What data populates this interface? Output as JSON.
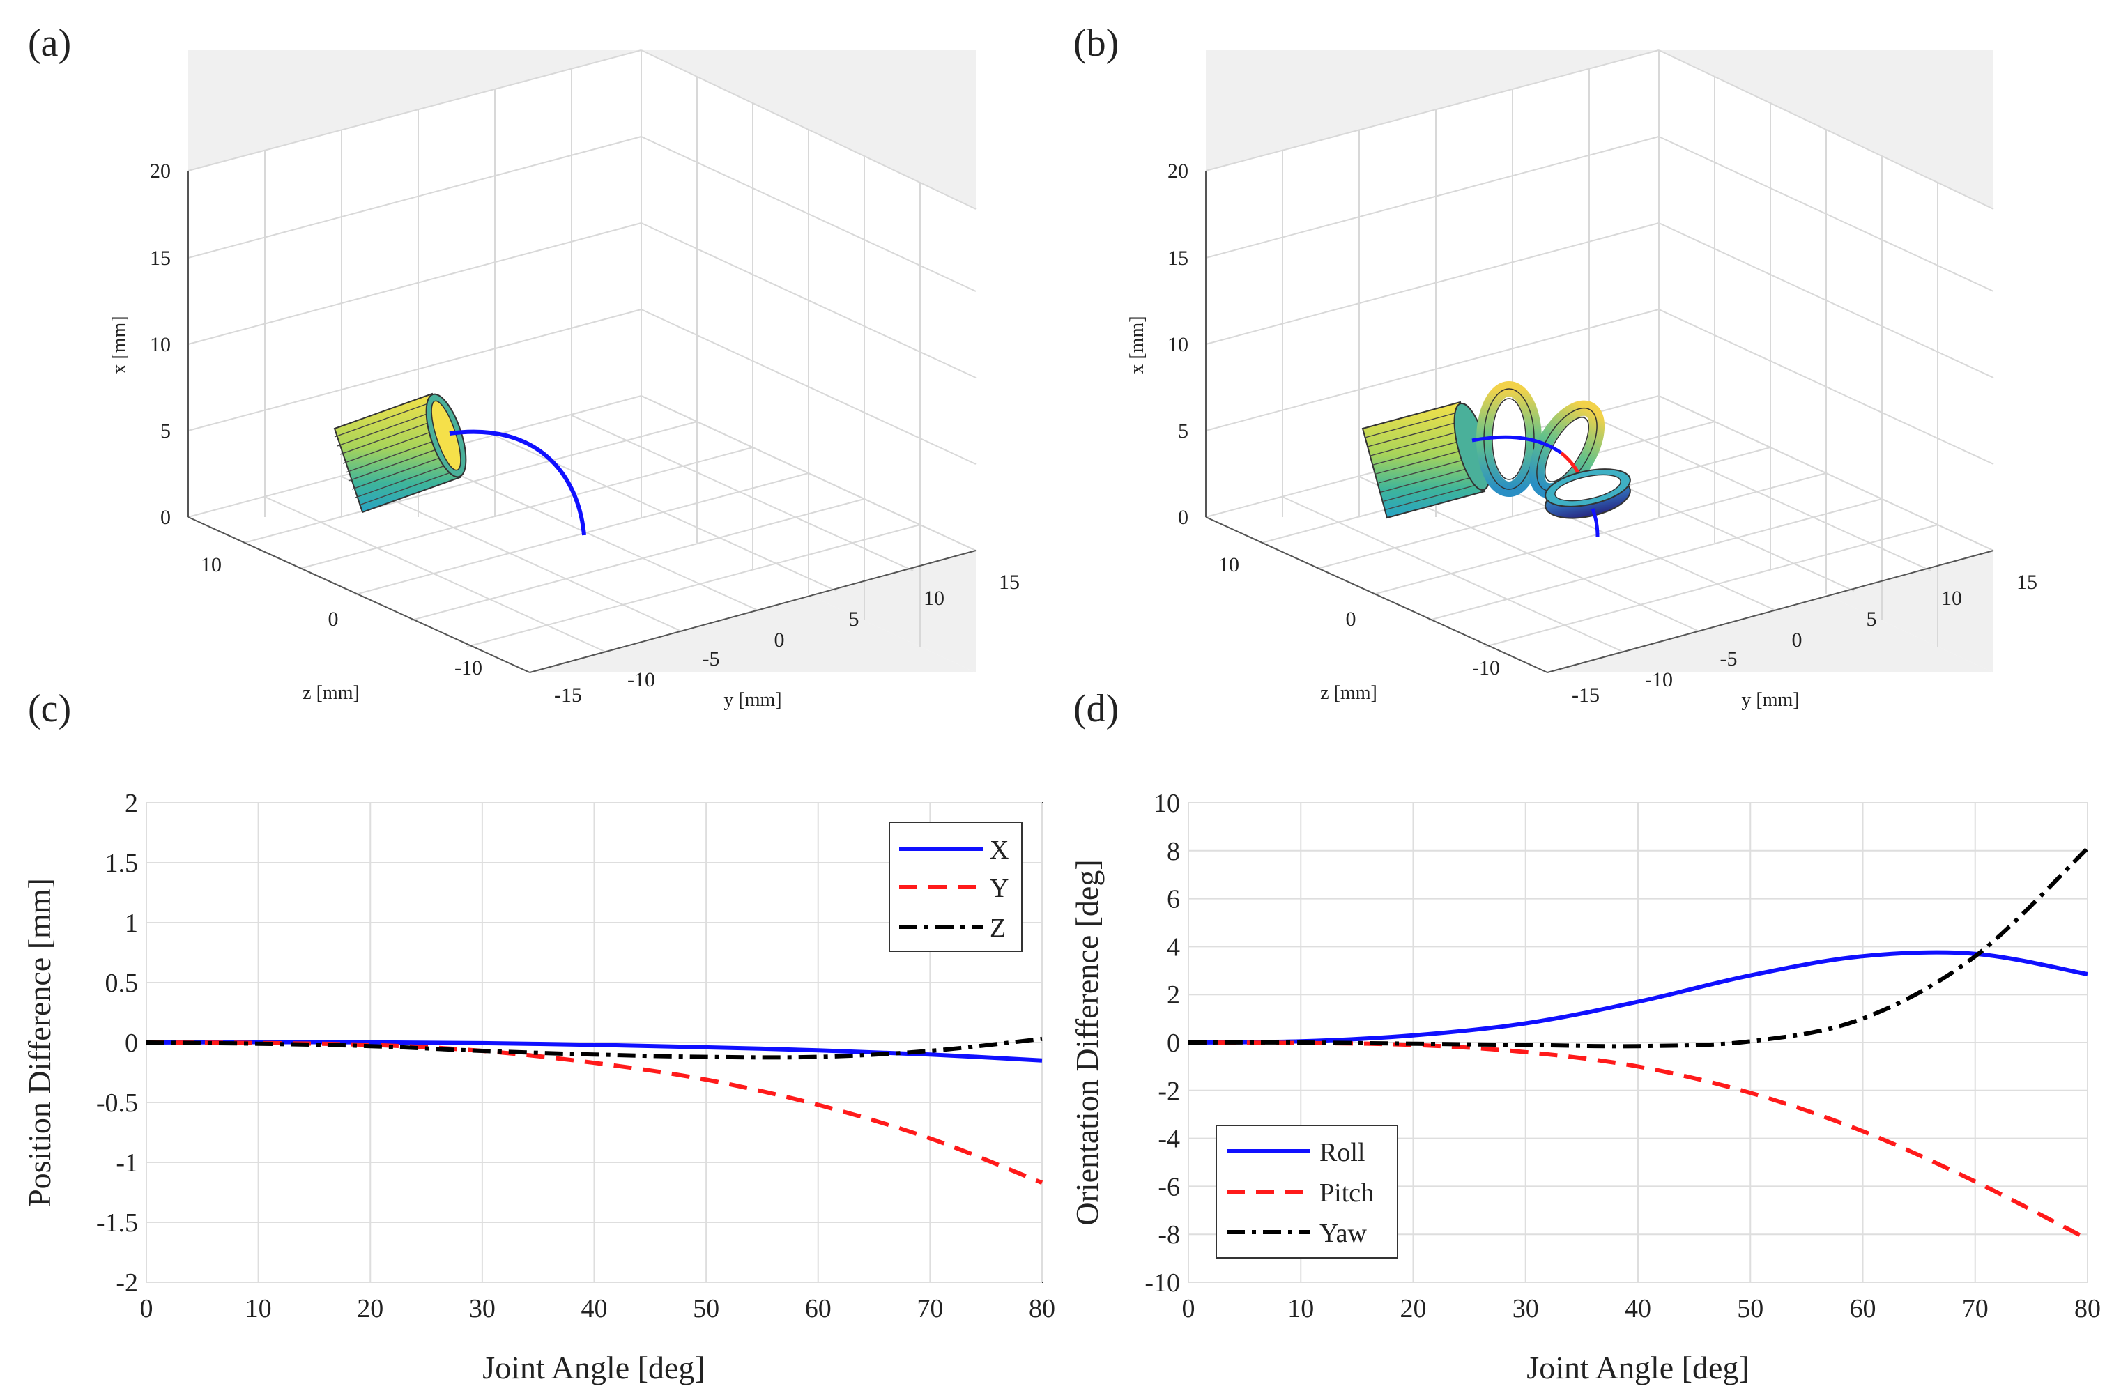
{
  "figure": {
    "panel_labels": [
      "(a)",
      "(b)",
      "(c)",
      "(d)"
    ]
  },
  "chart_data": [
    {
      "panel": "(a)",
      "type": "3d-surface",
      "xlabel": "y [mm]",
      "ylabel": "z [mm]",
      "zlabel": "x [mm]",
      "x_ticks": [
        "-15",
        "-10",
        "-5",
        "0",
        "5",
        "10",
        "15"
      ],
      "y_ticks": [
        "10",
        "0",
        "-10"
      ],
      "z_ticks": [
        "0",
        "5",
        "10",
        "15",
        "20"
      ],
      "objects": [
        {
          "name": "base-cylinder",
          "kind": "cylinder"
        },
        {
          "name": "bending-path",
          "kind": "curve",
          "color": "#1010ff"
        }
      ]
    },
    {
      "panel": "(b)",
      "type": "3d-surface",
      "xlabel": "y [mm]",
      "ylabel": "z [mm]",
      "zlabel": "x [mm]",
      "x_ticks": [
        "-15",
        "-10",
        "-5",
        "0",
        "5",
        "10",
        "15"
      ],
      "y_ticks": [
        "10",
        "0",
        "-10"
      ],
      "z_ticks": [
        "0",
        "5",
        "10",
        "15",
        "20"
      ],
      "objects": [
        {
          "name": "base-cylinder",
          "kind": "cylinder"
        },
        {
          "name": "ring-1",
          "kind": "ring"
        },
        {
          "name": "ring-2",
          "kind": "ring"
        },
        {
          "name": "ring-3",
          "kind": "ring"
        },
        {
          "name": "bending-path",
          "kind": "curve",
          "color": "#1010ff"
        }
      ]
    },
    {
      "panel": "(c)",
      "type": "line",
      "title": "",
      "xlabel": "Joint Angle [deg]",
      "ylabel": "Position Difference [mm]",
      "xlim": [
        0,
        80
      ],
      "ylim": [
        -2,
        2
      ],
      "x_ticks": [
        0,
        10,
        20,
        30,
        40,
        50,
        60,
        70,
        80
      ],
      "y_ticks": [
        2,
        1.5,
        1,
        0.5,
        0,
        -0.5,
        -1,
        -1.5,
        -2
      ],
      "y_tick_labels": [
        "2",
        "1.5",
        "1",
        "0.5",
        "0",
        "-0.5",
        "-1",
        "-1.5",
        "-2"
      ],
      "grid": true,
      "legend_position": "top-right",
      "x": [
        0,
        10,
        20,
        30,
        40,
        50,
        60,
        70,
        80
      ],
      "series": [
        {
          "name": "X",
          "color": "#1010ff",
          "dash": "solid",
          "values": [
            0,
            0.003,
            0.002,
            -0.005,
            -0.02,
            -0.04,
            -0.065,
            -0.1,
            -0.15
          ]
        },
        {
          "name": "Y",
          "color": "#ff1a1a",
          "dash": "dashed",
          "values": [
            0,
            -0.004,
            -0.02,
            -0.07,
            -0.17,
            -0.31,
            -0.52,
            -0.8,
            -1.17
          ]
        },
        {
          "name": "Z",
          "color": "#000000",
          "dash": "dashdot",
          "values": [
            0,
            -0.01,
            -0.03,
            -0.07,
            -0.1,
            -0.12,
            -0.12,
            -0.07,
            0.03
          ]
        }
      ]
    },
    {
      "panel": "(d)",
      "type": "line",
      "title": "",
      "xlabel": "Joint Angle [deg]",
      "ylabel": "Orientation Difference [deg]",
      "xlim": [
        0,
        80
      ],
      "ylim": [
        -10,
        10
      ],
      "x_ticks": [
        0,
        10,
        20,
        30,
        40,
        50,
        60,
        70,
        80
      ],
      "y_ticks": [
        10,
        8,
        6,
        4,
        2,
        0,
        -2,
        -4,
        -6,
        -8,
        -10
      ],
      "y_tick_labels": [
        "10",
        "8",
        "6",
        "4",
        "2",
        "0",
        "-2",
        "-4",
        "-6",
        "-8",
        "-10"
      ],
      "grid": true,
      "legend_position": "bottom-left",
      "x": [
        0,
        10,
        20,
        30,
        40,
        50,
        60,
        70,
        80
      ],
      "series": [
        {
          "name": "Roll",
          "color": "#1010ff",
          "dash": "solid",
          "values": [
            0,
            0.05,
            0.3,
            0.8,
            1.7,
            2.8,
            3.6,
            3.7,
            2.85
          ]
        },
        {
          "name": "Pitch",
          "color": "#ff1a1a",
          "dash": "dashed",
          "values": [
            0,
            -0.02,
            -0.1,
            -0.4,
            -1.0,
            -2.1,
            -3.7,
            -5.8,
            -8.2
          ]
        },
        {
          "name": "Yaw",
          "color": "#000000",
          "dash": "dashdot",
          "values": [
            0,
            0,
            -0.05,
            -0.1,
            -0.15,
            0.05,
            1.0,
            3.6,
            8.1
          ]
        }
      ]
    }
  ]
}
